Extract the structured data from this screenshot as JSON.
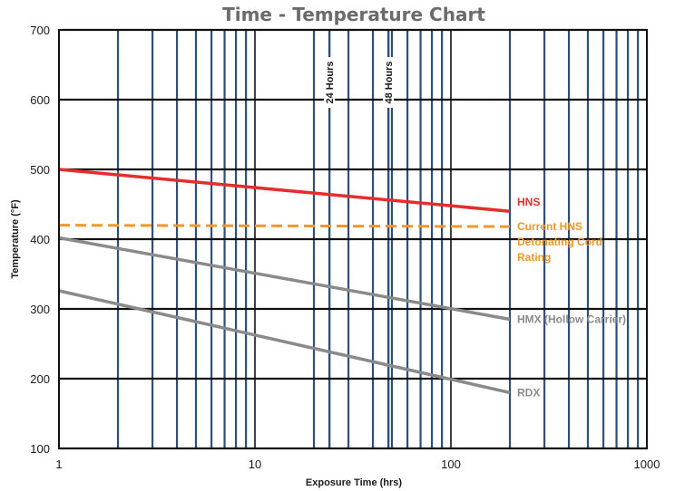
{
  "chart_data": {
    "type": "line",
    "title": "Time - Temperature Chart",
    "xlabel": "Exposure Time (hrs)",
    "ylabel": "Temperature (°F)",
    "xscale": "log",
    "xlim": [
      1,
      1000
    ],
    "ylim": [
      100,
      700
    ],
    "x_ticks": [
      1,
      10,
      100,
      1000
    ],
    "x_tick_labels": [
      "1",
      "10",
      "100",
      "1000"
    ],
    "y_ticks": [
      100,
      200,
      300,
      400,
      500,
      600,
      700
    ],
    "y_tick_labels": [
      "100",
      "200",
      "300",
      "400",
      "500",
      "600",
      "700"
    ],
    "grid": true,
    "minor_vlines": [
      2,
      3,
      4,
      5,
      6,
      7,
      8,
      9,
      20,
      30,
      40,
      50,
      60,
      70,
      80,
      90,
      200,
      300,
      400,
      500,
      600,
      700,
      800,
      900
    ],
    "reference_lines": [
      {
        "x": 24,
        "label": "24 Hours"
      },
      {
        "x": 48,
        "label": "48 Hours"
      }
    ],
    "series": [
      {
        "name": "HNS",
        "color": "#e52d2d",
        "style": "solid",
        "x": [
          1,
          200
        ],
        "y": [
          500,
          440
        ],
        "label_lines": [
          "HNS"
        ]
      },
      {
        "name": "Current HNS Detonating Cord Rating",
        "color": "#f0962a",
        "style": "dashed",
        "x": [
          1,
          200
        ],
        "y": [
          420,
          418
        ],
        "label_lines": [
          "Current HNS",
          "Detonating Cord",
          "Rating"
        ]
      },
      {
        "name": "HMX (Hollow Carrier)",
        "color": "#8a8a8a",
        "style": "solid",
        "x": [
          1,
          200
        ],
        "y": [
          402,
          285
        ],
        "label_lines": [
          "HMX (Hollow Carrier)"
        ]
      },
      {
        "name": "RDX",
        "color": "#8a8a8a",
        "style": "solid",
        "x": [
          1,
          200
        ],
        "y": [
          326,
          180
        ],
        "label_lines": [
          "RDX"
        ]
      }
    ]
  }
}
